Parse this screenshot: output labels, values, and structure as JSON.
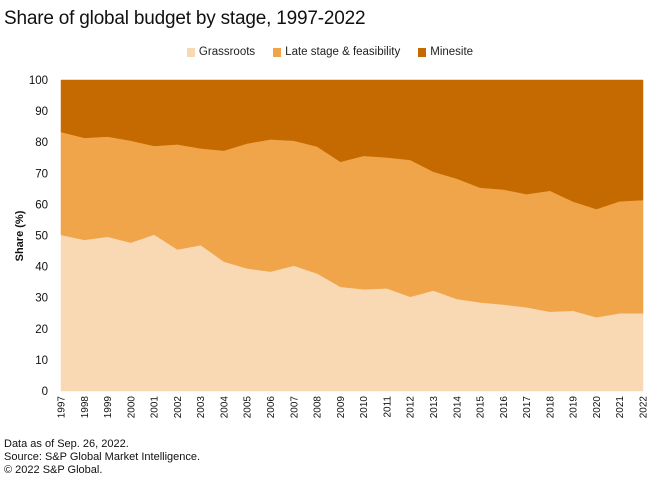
{
  "chart_data": {
    "type": "area",
    "stacked": true,
    "percent": true,
    "title": "Share of global budget by stage, 1997-2022",
    "xlabel": "",
    "ylabel": "Share (%)",
    "ylim": [
      0,
      100
    ],
    "yticks": [
      0,
      10,
      20,
      30,
      40,
      50,
      60,
      70,
      80,
      90,
      100
    ],
    "grid": false,
    "legend_position": "top-center",
    "categories": [
      "1997",
      "1998",
      "1999",
      "2000",
      "2001",
      "2002",
      "2003",
      "2004",
      "2005",
      "2006",
      "2007",
      "2008",
      "2009",
      "2010",
      "2011",
      "2012",
      "2013",
      "2014",
      "2015",
      "2016",
      "2017",
      "2018",
      "2019",
      "2020",
      "2021",
      "2022"
    ],
    "series": [
      {
        "name": "Grassroots",
        "color": "#F9D9B3",
        "values": [
          50.2,
          48.6,
          49.6,
          47.7,
          50.3,
          45.5,
          46.9,
          41.6,
          39.4,
          38.4,
          40.3,
          37.8,
          33.5,
          32.7,
          33.0,
          30.3,
          32.3,
          29.6,
          28.5,
          27.8,
          26.9,
          25.5,
          25.8,
          23.7,
          25.0,
          25.0
        ]
      },
      {
        "name": "Late stage & feasibility",
        "color": "#F0A54A",
        "values": [
          33.1,
          32.8,
          32.2,
          32.8,
          28.5,
          33.8,
          31.1,
          35.7,
          40.2,
          42.5,
          40.2,
          40.8,
          40.2,
          42.9,
          42.1,
          44.0,
          38.2,
          38.7,
          36.9,
          37.0,
          36.4,
          38.9,
          35.1,
          34.8,
          36.0,
          36.4
        ]
      },
      {
        "name": "Minesite",
        "color": "#C46A00",
        "values": [
          16.7,
          18.6,
          18.2,
          19.5,
          21.2,
          20.7,
          22.0,
          22.7,
          20.4,
          19.1,
          19.5,
          21.4,
          26.3,
          24.4,
          24.9,
          25.7,
          29.5,
          31.7,
          34.6,
          35.2,
          36.7,
          35.6,
          39.1,
          41.5,
          39.0,
          38.6
        ]
      }
    ]
  },
  "footer": {
    "line1": "Data as of Sep. 26, 2022.",
    "line2": "Source: S&P Global Market Intelligence.",
    "line3": "© 2022 S&P Global."
  }
}
